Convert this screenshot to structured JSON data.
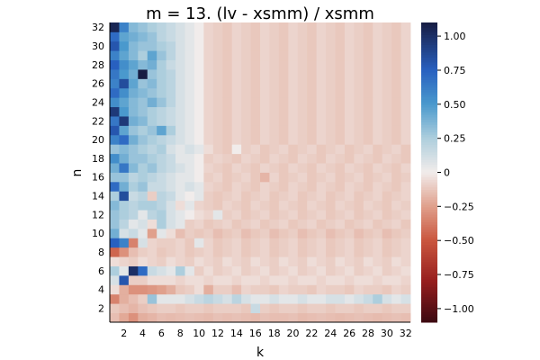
{
  "chart_data": {
    "type": "heatmap",
    "title": "m = 13. (lv - xsmm) / xsmm",
    "xlabel": "k",
    "ylabel": "n",
    "x_categories": [
      1,
      2,
      3,
      4,
      5,
      6,
      7,
      8,
      9,
      10,
      11,
      12,
      13,
      14,
      15,
      16,
      17,
      18,
      19,
      20,
      21,
      22,
      23,
      24,
      25,
      26,
      27,
      28,
      29,
      30,
      31,
      32
    ],
    "y_categories": [
      1,
      2,
      3,
      4,
      5,
      6,
      7,
      8,
      9,
      10,
      11,
      12,
      13,
      14,
      15,
      16,
      17,
      18,
      19,
      20,
      21,
      22,
      23,
      24,
      25,
      26,
      27,
      28,
      29,
      30,
      31,
      32
    ],
    "x_tick_labels": [
      "2",
      "4",
      "6",
      "8",
      "10",
      "12",
      "14",
      "16",
      "18",
      "20",
      "22",
      "24",
      "26",
      "28",
      "30",
      "32"
    ],
    "y_tick_labels": [
      "2",
      "4",
      "6",
      "8",
      "10",
      "12",
      "14",
      "16",
      "18",
      "20",
      "22",
      "24",
      "26",
      "28",
      "30",
      "32"
    ],
    "colorbar": {
      "range": [
        -1.1,
        1.1
      ],
      "ticks": [
        1.0,
        0.75,
        0.5,
        0.25,
        0,
        -0.25,
        -0.5,
        -0.75,
        -1.0
      ],
      "tick_labels": [
        "1.00",
        "0.75",
        "0.50",
        "0.25",
        "0",
        "−0.25",
        "−0.50",
        "−0.75",
        "−1.00"
      ],
      "colormap": "balance (dark red → white → dark blue)"
    },
    "grid": false,
    "legend": "colorbar-right",
    "values_note": "values[i] is row n = i+1 (n=1 at bottom), columns k = 1..32",
    "values": [
      [
        -0.15,
        -0.22,
        -0.3,
        -0.2,
        -0.18,
        -0.15,
        -0.16,
        -0.15,
        -0.14,
        -0.15,
        -0.16,
        -0.14,
        -0.15,
        -0.14,
        -0.15,
        -0.16,
        -0.14,
        -0.15,
        -0.15,
        -0.14,
        -0.16,
        -0.15,
        -0.14,
        -0.15,
        -0.16,
        -0.15,
        -0.14,
        -0.15,
        -0.16,
        -0.15,
        -0.14,
        -0.15
      ],
      [
        -0.12,
        -0.15,
        -0.18,
        -0.14,
        -0.12,
        -0.1,
        -0.1,
        -0.12,
        -0.1,
        -0.1,
        -0.12,
        -0.1,
        -0.1,
        -0.1,
        -0.12,
        0.15,
        -0.1,
        -0.12,
        -0.1,
        -0.1,
        -0.12,
        -0.1,
        -0.1,
        -0.12,
        -0.1,
        -0.1,
        -0.12,
        -0.1,
        -0.1,
        -0.12,
        -0.1,
        -0.1
      ],
      [
        -0.35,
        -0.2,
        -0.15,
        -0.1,
        0.3,
        0.05,
        0.05,
        0.05,
        0.1,
        0.15,
        0.2,
        0.15,
        0.1,
        0.2,
        0.1,
        0.05,
        0.05,
        0.1,
        0.05,
        0.05,
        0.1,
        0.05,
        0.05,
        0.1,
        0.1,
        0.05,
        0.1,
        0.15,
        0.25,
        0.1,
        0.05,
        0.1
      ],
      [
        -0.05,
        -0.2,
        -0.3,
        -0.3,
        -0.28,
        -0.25,
        -0.2,
        -0.12,
        -0.1,
        -0.05,
        -0.2,
        -0.1,
        -0.1,
        -0.15,
        -0.08,
        -0.1,
        -0.1,
        -0.12,
        -0.08,
        -0.1,
        -0.1,
        -0.12,
        -0.08,
        -0.1,
        -0.1,
        -0.12,
        -0.08,
        -0.1,
        -0.1,
        -0.12,
        -0.08,
        -0.1
      ],
      [
        0.1,
        0.8,
        -0.1,
        -0.1,
        -0.05,
        -0.05,
        -0.05,
        -0.08,
        -0.05,
        -0.05,
        -0.08,
        -0.05,
        -0.05,
        -0.08,
        -0.05,
        -0.05,
        -0.08,
        -0.05,
        -0.05,
        -0.08,
        -0.05,
        -0.05,
        -0.08,
        -0.05,
        -0.05,
        -0.08,
        -0.05,
        -0.05,
        -0.08,
        -0.05,
        -0.05,
        -0.08
      ],
      [
        0.25,
        0.05,
        1.0,
        0.7,
        0.15,
        0.1,
        0.05,
        0.25,
        0.05,
        -0.1,
        -0.05,
        -0.1,
        -0.08,
        -0.05,
        -0.1,
        -0.08,
        -0.05,
        -0.1,
        -0.08,
        -0.05,
        -0.1,
        -0.08,
        -0.05,
        -0.1,
        -0.08,
        -0.05,
        -0.1,
        -0.08,
        -0.05,
        -0.1,
        -0.08,
        -0.05
      ],
      [
        -0.05,
        -0.08,
        -0.1,
        -0.05,
        -0.08,
        -0.1,
        -0.05,
        -0.08,
        -0.1,
        -0.05,
        -0.08,
        -0.1,
        -0.05,
        -0.08,
        -0.1,
        -0.05,
        -0.08,
        -0.1,
        -0.05,
        -0.08,
        -0.1,
        -0.05,
        -0.08,
        -0.1,
        -0.05,
        -0.08,
        -0.1,
        -0.05,
        -0.08,
        -0.1,
        -0.05,
        -0.08
      ],
      [
        -0.45,
        -0.3,
        -0.15,
        -0.1,
        -0.08,
        -0.12,
        -0.1,
        -0.08,
        -0.12,
        -0.1,
        -0.08,
        -0.12,
        -0.1,
        -0.08,
        -0.12,
        -0.1,
        -0.08,
        -0.12,
        -0.1,
        -0.08,
        -0.12,
        -0.1,
        -0.08,
        -0.12,
        -0.1,
        -0.08,
        -0.12,
        -0.1,
        -0.08,
        -0.12,
        -0.1,
        -0.08
      ],
      [
        0.75,
        0.6,
        -0.35,
        0.1,
        -0.08,
        -0.1,
        -0.1,
        -0.08,
        -0.12,
        0.05,
        -0.08,
        -0.12,
        -0.1,
        -0.08,
        -0.12,
        -0.1,
        -0.08,
        -0.12,
        -0.1,
        -0.08,
        -0.12,
        -0.1,
        -0.08,
        -0.12,
        -0.1,
        -0.08,
        -0.12,
        -0.1,
        -0.08,
        -0.12,
        -0.1,
        -0.08
      ],
      [
        0.4,
        0.1,
        0.15,
        0.05,
        -0.25,
        0.05,
        -0.05,
        -0.15,
        -0.1,
        -0.12,
        -0.1,
        -0.15,
        -0.12,
        -0.1,
        -0.15,
        -0.12,
        -0.1,
        -0.15,
        -0.12,
        -0.1,
        -0.15,
        -0.12,
        -0.1,
        -0.15,
        -0.12,
        -0.1,
        -0.15,
        -0.12,
        -0.1,
        -0.15,
        -0.12,
        -0.1
      ],
      [
        0.3,
        0.2,
        0.05,
        0.1,
        -0.05,
        0.25,
        0.1,
        0.05,
        -0.1,
        -0.08,
        -0.12,
        -0.1,
        -0.08,
        -0.12,
        -0.1,
        -0.08,
        -0.12,
        -0.1,
        -0.08,
        -0.12,
        -0.1,
        -0.08,
        -0.12,
        -0.1,
        -0.08,
        -0.12,
        -0.1,
        -0.08,
        -0.12,
        -0.1,
        -0.08,
        -0.12
      ],
      [
        0.3,
        0.25,
        0.2,
        0.05,
        0.2,
        0.25,
        0.1,
        0.05,
        0.0,
        -0.05,
        -0.08,
        0.05,
        -0.1,
        -0.08,
        -0.12,
        -0.1,
        -0.08,
        -0.12,
        -0.1,
        -0.08,
        -0.12,
        -0.1,
        -0.08,
        -0.12,
        -0.1,
        -0.08,
        -0.12,
        -0.1,
        -0.08,
        -0.12,
        -0.1,
        -0.08
      ],
      [
        0.35,
        0.25,
        0.2,
        0.25,
        0.25,
        0.2,
        0.1,
        -0.05,
        0.05,
        -0.08,
        -0.1,
        -0.12,
        -0.08,
        -0.1,
        -0.12,
        -0.08,
        -0.1,
        -0.12,
        -0.08,
        -0.1,
        -0.12,
        -0.08,
        -0.1,
        -0.12,
        -0.08,
        -0.1,
        -0.12,
        -0.08,
        -0.1,
        -0.12,
        -0.08,
        -0.1
      ],
      [
        0.25,
        0.85,
        0.15,
        0.2,
        -0.1,
        0.2,
        0.15,
        0.05,
        0.0,
        0.05,
        -0.1,
        -0.12,
        -0.1,
        -0.08,
        -0.12,
        -0.1,
        -0.08,
        -0.12,
        -0.1,
        -0.08,
        -0.12,
        -0.1,
        -0.08,
        -0.12,
        -0.1,
        -0.08,
        -0.12,
        -0.1,
        -0.08,
        -0.12,
        -0.1,
        -0.08
      ],
      [
        0.7,
        0.4,
        0.25,
        0.3,
        0.15,
        0.15,
        0.1,
        0.05,
        0.1,
        0.05,
        -0.08,
        -0.1,
        -0.12,
        -0.08,
        -0.1,
        -0.12,
        -0.08,
        -0.1,
        -0.12,
        -0.08,
        -0.1,
        -0.12,
        -0.08,
        -0.1,
        -0.12,
        -0.08,
        -0.1,
        -0.12,
        -0.08,
        -0.1,
        -0.12,
        -0.08
      ],
      [
        0.3,
        0.3,
        0.2,
        0.25,
        0.2,
        0.15,
        0.1,
        0.05,
        0.05,
        0.0,
        -0.1,
        -0.08,
        -0.12,
        -0.1,
        -0.08,
        -0.12,
        -0.18,
        -0.08,
        -0.12,
        -0.1,
        -0.08,
        -0.12,
        -0.1,
        -0.08,
        -0.12,
        -0.1,
        -0.08,
        -0.12,
        -0.1,
        -0.08,
        -0.12,
        -0.1
      ],
      [
        0.4,
        0.65,
        0.35,
        0.25,
        0.3,
        0.2,
        0.15,
        0.1,
        0.05,
        0.0,
        -0.08,
        -0.1,
        -0.12,
        -0.08,
        -0.1,
        -0.12,
        -0.08,
        -0.1,
        -0.12,
        -0.08,
        -0.1,
        -0.12,
        -0.08,
        -0.1,
        -0.12,
        -0.08,
        -0.1,
        -0.12,
        -0.08,
        -0.1,
        -0.12,
        -0.08
      ],
      [
        0.55,
        0.4,
        0.3,
        0.3,
        0.25,
        0.2,
        0.15,
        0.05,
        0.05,
        0.0,
        -0.1,
        -0.08,
        -0.1,
        -0.12,
        -0.08,
        -0.1,
        -0.12,
        -0.08,
        -0.1,
        -0.12,
        -0.08,
        -0.1,
        -0.12,
        -0.08,
        -0.1,
        -0.12,
        -0.08,
        -0.1,
        -0.12,
        -0.08,
        -0.1,
        -0.12
      ],
      [
        0.3,
        0.35,
        0.3,
        0.25,
        0.2,
        0.25,
        0.1,
        0.05,
        0.1,
        0.05,
        -0.05,
        -0.1,
        -0.12,
        0.0,
        -0.1,
        -0.08,
        -0.12,
        -0.1,
        -0.08,
        -0.12,
        -0.1,
        -0.08,
        -0.12,
        -0.1,
        -0.08,
        -0.12,
        -0.1,
        -0.08,
        -0.12,
        -0.1,
        -0.08,
        -0.12
      ],
      [
        0.6,
        0.7,
        0.4,
        0.3,
        0.25,
        0.2,
        0.15,
        0.1,
        0.05,
        0.0,
        -0.08,
        -0.1,
        -0.12,
        -0.08,
        -0.1,
        -0.12,
        -0.08,
        -0.1,
        -0.12,
        -0.08,
        -0.1,
        -0.12,
        -0.08,
        -0.1,
        -0.12,
        -0.08,
        -0.1,
        -0.12,
        -0.08,
        -0.1,
        -0.12,
        -0.08
      ],
      [
        0.8,
        0.45,
        0.3,
        0.25,
        0.3,
        0.45,
        0.25,
        0.1,
        0.05,
        0.0,
        -0.08,
        -0.1,
        -0.12,
        -0.08,
        -0.1,
        -0.12,
        -0.08,
        -0.1,
        -0.12,
        -0.08,
        -0.1,
        -0.12,
        -0.08,
        -0.1,
        -0.12,
        -0.08,
        -0.1,
        -0.12,
        -0.08,
        -0.1,
        -0.12,
        -0.08
      ],
      [
        0.65,
        0.95,
        0.4,
        0.35,
        0.25,
        0.2,
        0.15,
        0.1,
        0.05,
        0.0,
        -0.08,
        -0.1,
        -0.12,
        -0.08,
        -0.1,
        -0.12,
        -0.08,
        -0.1,
        -0.12,
        -0.08,
        -0.1,
        -0.12,
        -0.08,
        -0.1,
        -0.12,
        -0.08,
        -0.1,
        -0.12,
        -0.08,
        -0.1,
        -0.12,
        -0.08
      ],
      [
        0.95,
        0.5,
        0.35,
        0.3,
        0.25,
        0.2,
        0.15,
        0.1,
        0.05,
        0.0,
        -0.08,
        -0.1,
        -0.12,
        -0.08,
        -0.1,
        -0.12,
        -0.08,
        -0.1,
        -0.12,
        -0.08,
        -0.1,
        -0.12,
        -0.08,
        -0.1,
        -0.12,
        -0.08,
        -0.1,
        -0.12,
        -0.08,
        -0.1,
        -0.12,
        -0.08
      ],
      [
        0.55,
        0.45,
        0.35,
        0.3,
        0.4,
        0.3,
        0.2,
        0.1,
        0.05,
        0.0,
        -0.08,
        -0.1,
        -0.12,
        -0.08,
        -0.1,
        -0.12,
        -0.08,
        -0.1,
        -0.12,
        -0.08,
        -0.1,
        -0.12,
        -0.08,
        -0.1,
        -0.12,
        -0.08,
        -0.1,
        -0.12,
        -0.08,
        -0.1,
        -0.12,
        -0.08
      ],
      [
        0.7,
        0.55,
        0.4,
        0.35,
        0.3,
        0.25,
        0.2,
        0.1,
        0.05,
        0.0,
        -0.08,
        -0.1,
        -0.12,
        -0.08,
        -0.1,
        -0.12,
        -0.08,
        -0.1,
        -0.12,
        -0.08,
        -0.1,
        -0.12,
        -0.08,
        -0.1,
        -0.12,
        -0.08,
        -0.1,
        -0.12,
        -0.08,
        -0.1,
        -0.12,
        -0.08
      ],
      [
        0.6,
        0.85,
        0.45,
        0.3,
        0.35,
        0.25,
        0.2,
        0.1,
        0.05,
        0.0,
        -0.08,
        -0.1,
        -0.12,
        -0.08,
        -0.1,
        -0.12,
        -0.08,
        -0.1,
        -0.12,
        -0.08,
        -0.1,
        -0.12,
        -0.08,
        -0.1,
        -0.12,
        -0.08,
        -0.1,
        -0.12,
        -0.08,
        -0.1,
        -0.12,
        -0.08
      ],
      [
        0.65,
        0.5,
        0.4,
        1.1,
        0.3,
        0.25,
        0.2,
        0.1,
        0.05,
        0.0,
        -0.08,
        -0.1,
        -0.12,
        -0.08,
        -0.1,
        -0.12,
        -0.08,
        -0.1,
        -0.12,
        -0.08,
        -0.1,
        -0.12,
        -0.08,
        -0.1,
        -0.12,
        -0.08,
        -0.1,
        -0.12,
        -0.08,
        -0.1,
        -0.12,
        -0.08
      ],
      [
        0.75,
        0.55,
        0.45,
        0.35,
        0.4,
        0.25,
        0.15,
        0.1,
        0.05,
        0.0,
        -0.08,
        -0.1,
        -0.12,
        -0.08,
        -0.1,
        -0.12,
        -0.08,
        -0.1,
        -0.12,
        -0.08,
        -0.1,
        -0.12,
        -0.08,
        -0.1,
        -0.12,
        -0.08,
        -0.1,
        -0.12,
        -0.08,
        -0.1,
        -0.12,
        -0.08
      ],
      [
        0.6,
        0.45,
        0.35,
        0.25,
        0.45,
        0.3,
        0.2,
        0.1,
        0.05,
        0.0,
        -0.08,
        -0.1,
        -0.12,
        -0.08,
        -0.1,
        -0.12,
        -0.08,
        -0.1,
        -0.12,
        -0.08,
        -0.1,
        -0.12,
        -0.08,
        -0.1,
        -0.12,
        -0.08,
        -0.1,
        -0.12,
        -0.08,
        -0.1,
        -0.12,
        -0.08
      ],
      [
        0.8,
        0.5,
        0.35,
        0.3,
        0.3,
        0.25,
        0.2,
        0.1,
        0.05,
        0.0,
        -0.08,
        -0.1,
        -0.12,
        -0.08,
        -0.1,
        -0.12,
        -0.08,
        -0.1,
        -0.12,
        -0.08,
        -0.1,
        -0.12,
        -0.08,
        -0.1,
        -0.12,
        -0.08,
        -0.1,
        -0.12,
        -0.08,
        -0.1,
        -0.12,
        -0.08
      ],
      [
        0.7,
        0.45,
        0.4,
        0.35,
        0.3,
        0.2,
        0.15,
        0.1,
        0.05,
        0.0,
        -0.08,
        -0.1,
        -0.12,
        -0.08,
        -0.1,
        -0.12,
        -0.08,
        -0.1,
        -0.12,
        -0.08,
        -0.1,
        -0.12,
        -0.08,
        -0.1,
        -0.12,
        -0.08,
        -0.1,
        -0.12,
        -0.08,
        -0.1,
        -0.12,
        -0.08
      ],
      [
        1.05,
        0.6,
        0.35,
        0.3,
        0.25,
        0.2,
        0.15,
        0.1,
        0.05,
        0.0,
        -0.08,
        -0.1,
        -0.12,
        -0.08,
        -0.1,
        -0.12,
        -0.08,
        -0.1,
        -0.12,
        -0.08,
        -0.1,
        -0.12,
        -0.08,
        -0.1,
        -0.12,
        -0.08,
        -0.1,
        -0.12,
        -0.08,
        -0.1,
        -0.12,
        -0.08
      ]
    ]
  }
}
